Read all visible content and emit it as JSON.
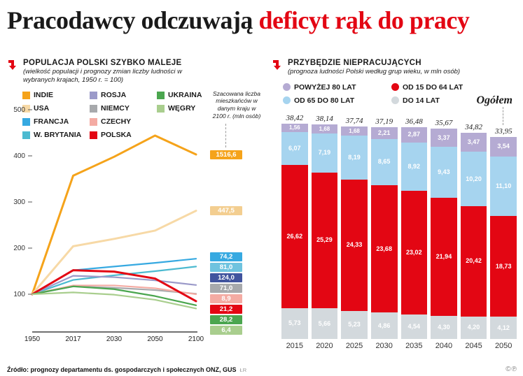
{
  "header": {
    "title_black": "Pracodawcy odczuwają ",
    "title_red": "deficyt rąk do pracy"
  },
  "accent_color": "#E30613",
  "footer": {
    "source": "Źródło: prognozy departamentu ds. gospodarczych i społecznych ONZ, GUS",
    "credit": "ŁR",
    "rights": "©℗"
  },
  "chart_data": [
    {
      "type": "line",
      "title": "Populacja Polski szybko maleje",
      "subtitle": "(wielkość populacji i prognozy zmian liczby ludności w wybranych krajach, 1950 r. = 100)",
      "annotation": "Szacowana liczba mieszkańców w danym kraju w 2100 r. (mln osób)",
      "x_labels": [
        "1950",
        "2017",
        "2030",
        "2050",
        "2100"
      ],
      "y_ticks": [
        500,
        400,
        300,
        200,
        100
      ],
      "ylim": [
        60,
        520
      ],
      "index_note": "1950 = 100",
      "legend_position": "top-left",
      "series": [
        {
          "name": "INDIE",
          "color": "#F5A31A",
          "box_color": "#F5A31A",
          "values": [
            100,
            357,
            398,
            444,
            403
          ],
          "pop_2100": "1516,6",
          "thick": true
        },
        {
          "name": "USA",
          "color": "#F7D9A6",
          "box_color": "#F3CE90",
          "values": [
            100,
            204,
            220,
            238,
            281
          ],
          "pop_2100": "447,5",
          "thick": true
        },
        {
          "name": "FRANCJA",
          "color": "#36A9E1",
          "box_color": "#36A9E1",
          "values": [
            100,
            152,
            160,
            168,
            177
          ],
          "pop_2100": "74,2"
        },
        {
          "name": "W. BRYTANIA",
          "color": "#4CBAD0",
          "box_color": "#6FC3DF",
          "values": [
            100,
            131,
            141,
            150,
            160
          ],
          "pop_2100": "81,0"
        },
        {
          "name": "ROSJA",
          "color": "#9B9AC9",
          "box_color": "#41549E",
          "values": [
            100,
            140,
            137,
            130,
            120
          ],
          "pop_2100": "124,0"
        },
        {
          "name": "NIEMCY",
          "color": "#A7A9AC",
          "box_color": "#A7A9AC",
          "values": [
            100,
            117,
            114,
            109,
            101
          ],
          "pop_2100": "71,0"
        },
        {
          "name": "CZECHY",
          "color": "#F4ABA3",
          "box_color": "#F4ABA3",
          "values": [
            100,
            119,
            119,
            113,
            100
          ],
          "pop_2100": "8,9"
        },
        {
          "name": "POLSKA",
          "color": "#E30613",
          "box_color": "#E30613",
          "values": [
            100,
            152,
            149,
            134,
            85
          ],
          "pop_2100": "21,2",
          "thick": true
        },
        {
          "name": "UKRAINA",
          "color": "#4BA64F",
          "box_color": "#4BA64F",
          "values": [
            100,
            117,
            111,
            96,
            76
          ],
          "pop_2100": "28,2"
        },
        {
          "name": "WĘGRY",
          "color": "#A9CE8E",
          "box_color": "#A9CE8E",
          "values": [
            100,
            104,
            99,
            88,
            69
          ],
          "pop_2100": "6,4"
        }
      ]
    },
    {
      "type": "stacked-bar",
      "title": "Przybędzie niepracujących",
      "subtitle": "(prognoza ludności Polski według grup wieku, w mln osób)",
      "total_heading": "Ogółem",
      "legend_position": "top",
      "categories": [
        "2015",
        "2020",
        "2025",
        "2030",
        "2035",
        "2040",
        "2045",
        "2050"
      ],
      "totals": [
        "38,42",
        "38,14",
        "37,74",
        "37,19",
        "36,48",
        "35,67",
        "34,82",
        "33,95"
      ],
      "series": [
        {
          "name": "POWYŻEJ 80 LAT",
          "color": "#B5ABD3",
          "values": [
            1.56,
            1.68,
            1.68,
            2.21,
            2.87,
            3.37,
            3.47,
            3.54
          ],
          "labels": [
            "1,56",
            "1,68",
            "1,68",
            "2,21",
            "2,87",
            "3,37",
            "3,47",
            "3,54"
          ]
        },
        {
          "name": "OD 65 DO 80 LAT",
          "color": "#A6D4EF",
          "values": [
            6.07,
            7.19,
            8.19,
            8.65,
            8.92,
            9.43,
            10.2,
            11.1
          ],
          "labels": [
            "6,07",
            "7,19",
            "8,19",
            "8,65",
            "8,92",
            "9,43",
            "10,20",
            "11,10"
          ]
        },
        {
          "name": "OD 15 DO 64 LAT",
          "color": "#E30613",
          "values": [
            26.62,
            25.29,
            24.33,
            23.68,
            23.02,
            21.94,
            20.42,
            18.73
          ],
          "labels": [
            "26,62",
            "25,29",
            "24,33",
            "23,68",
            "23,02",
            "21,94",
            "20,42",
            "18,73"
          ]
        },
        {
          "name": "DO 14 LAT",
          "color": "#D3D9DD",
          "values": [
            5.73,
            5.66,
            5.23,
            4.86,
            4.54,
            4.3,
            4.2,
            4.12
          ],
          "labels": [
            "5,73",
            "5,66",
            "5,23",
            "4,86",
            "4,54",
            "4,30",
            "4,20",
            "4,12"
          ]
        }
      ]
    }
  ]
}
